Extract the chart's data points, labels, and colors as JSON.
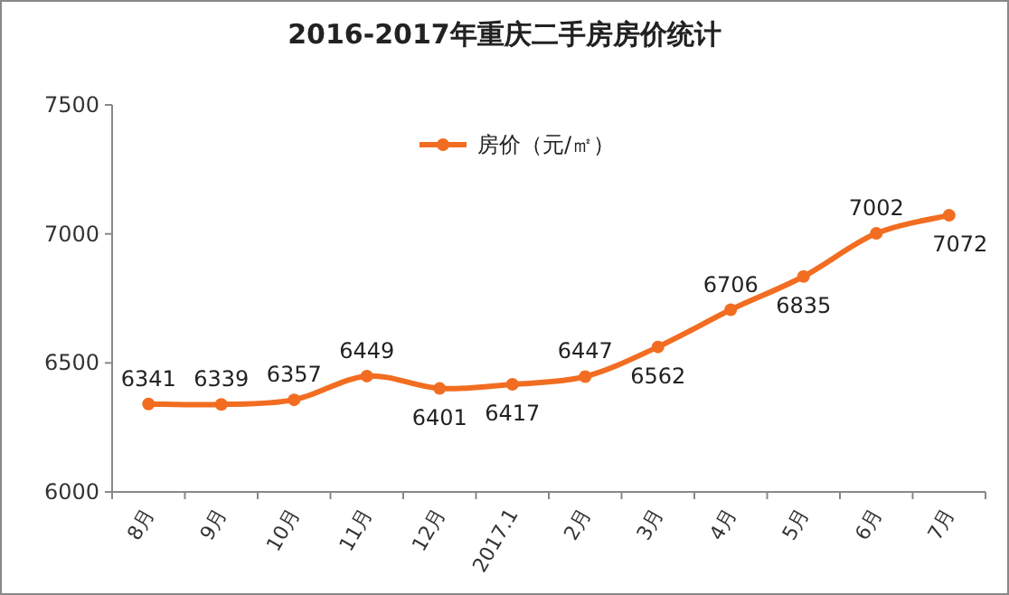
{
  "chart_data": {
    "type": "line",
    "title": "2016-2017年重庆二手房房价统计",
    "categories": [
      "8月",
      "9月",
      "10月",
      "11月",
      "12月",
      "2017.1",
      "2月",
      "3月",
      "4月",
      "5月",
      "6月",
      "7月"
    ],
    "series": [
      {
        "name": "房价（元/㎡）",
        "color": "#f26d21",
        "values": [
          6341,
          6339,
          6357,
          6449,
          6401,
          6417,
          6447,
          6562,
          6706,
          6835,
          7002,
          7072
        ]
      }
    ],
    "ylim": [
      6000,
      7500
    ],
    "yticks": [
      6000,
      6500,
      7000,
      7500
    ],
    "grid": false,
    "legend": "top",
    "marker": "circle",
    "line_style": "solid",
    "data_labels": true
  }
}
